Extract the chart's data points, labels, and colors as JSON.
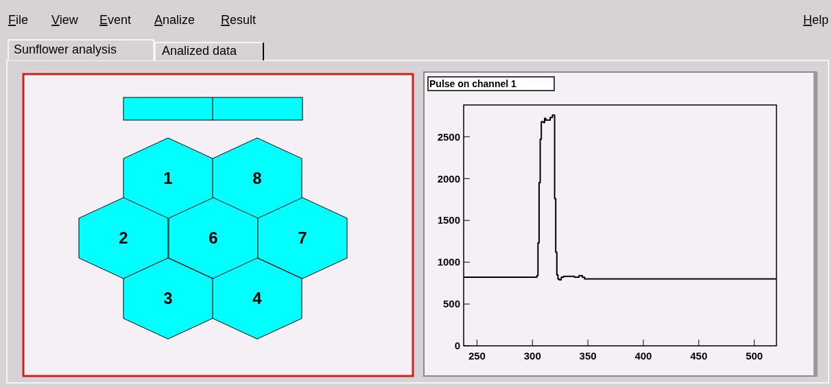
{
  "chart_data": [
    {
      "type": "other",
      "annotations": [
        "File",
        "View",
        "Event",
        "Analize",
        "Result",
        "Help",
        "Sunflower analysis",
        "Analized data",
        "1",
        "8",
        "2",
        "6",
        "7",
        "3",
        "4"
      ]
    },
    {
      "type": "step",
      "title": "Pulse on channel 1",
      "x": [
        238,
        304,
        305,
        306,
        307,
        308,
        310,
        311,
        312,
        314,
        316,
        318,
        320,
        321,
        322,
        323,
        324,
        326,
        328,
        332,
        338,
        342,
        345,
        347,
        520
      ],
      "series": [
        {
          "color": "#000000",
          "values": [
            820,
            840,
            1230,
            1950,
            2470,
            2680,
            2670,
            2720,
            2700,
            2700,
            2730,
            2760,
            1760,
            1120,
            850,
            800,
            790,
            820,
            830,
            830,
            820,
            840,
            820,
            800,
            800
          ]
        }
      ],
      "xlim": [
        238,
        520
      ],
      "ylim": [
        0,
        2880
      ],
      "xticks": [
        250,
        300,
        350,
        400,
        450,
        500
      ],
      "yticks": [
        0,
        500,
        1000,
        1500,
        2000,
        2500
      ],
      "line_style": "solid",
      "marker": "none",
      "grid": false
    }
  ]
}
